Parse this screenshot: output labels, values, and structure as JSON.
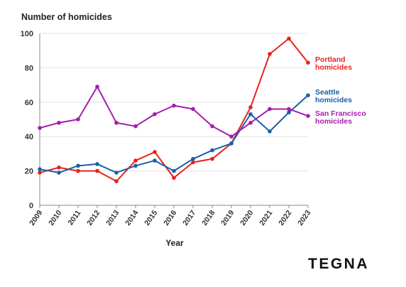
{
  "chart_data": {
    "type": "line",
    "ylabel": "Number of homicides",
    "xlabel": "Year",
    "ylim": [
      0,
      100
    ],
    "yticks": [
      0,
      20,
      40,
      60,
      80,
      100
    ],
    "grid": "horizontal",
    "legend": "labels at right end of each line",
    "categories": [
      "2009",
      "2010",
      "2011",
      "2012",
      "2013",
      "2014",
      "2015",
      "2016",
      "2017",
      "2018",
      "2019",
      "2020",
      "2021",
      "2022",
      "2023"
    ],
    "series": [
      {
        "name": "Portland homicides",
        "color": "#e8221c",
        "values": [
          19,
          22,
          20,
          20,
          14,
          26,
          31,
          16,
          25,
          27,
          36,
          57,
          88,
          97,
          83
        ]
      },
      {
        "name": "Seattle homicides",
        "color": "#1b5fa8",
        "values": [
          21,
          19,
          23,
          24,
          19,
          23,
          26,
          20,
          27,
          32,
          36,
          53,
          43,
          54,
          64
        ]
      },
      {
        "name": "San Francisco homicides",
        "color": "#a51dad",
        "values": [
          45,
          48,
          50,
          69,
          48,
          46,
          53,
          58,
          56,
          46,
          40,
          48,
          56,
          56,
          52
        ]
      }
    ]
  },
  "brand": "TEGNA",
  "legend_lines": {
    "portland": [
      "Portland",
      "homicides"
    ],
    "seattle": [
      "Seattle",
      "homicides"
    ],
    "sanfrancisco": [
      "San Francisco",
      "homicides"
    ]
  }
}
